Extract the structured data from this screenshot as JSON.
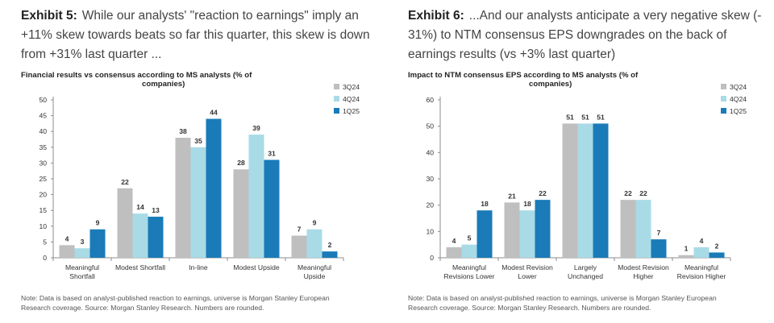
{
  "exhibit5": {
    "label": "Exhibit 5:",
    "heading_lines": [
      "While our analysts' \"reaction to earnings\" imply an",
      "+11% skew towards beats so far this quarter, this skew is down",
      "from +31% last quarter ..."
    ],
    "note_lines": [
      "Note: Data is based on analyst-published reaction to earnings, universe is Morgan Stanley European",
      "Research coverage. Source: Morgan Stanley Research. Numbers are rounded."
    ]
  },
  "exhibit6": {
    "label": "Exhibit 6:",
    "heading_lines": [
      "...And our analysts anticipate a very negative skew (-",
      "31%) to NTM consensus EPS downgrades on the back of",
      "earnings results (vs +3% last quarter)"
    ],
    "note_lines": [
      "Note: Data is based on analyst-published reaction to earnings, universe is Morgan Stanley European",
      "Research coverage. Source: Morgan Stanley Research. Numbers are rounded."
    ]
  },
  "colors": {
    "3Q24": "#bfbfbf",
    "4Q24": "#a8dbe6",
    "1Q25": "#1a7bb8"
  },
  "chart_data": [
    {
      "type": "bar",
      "title_lines": [
        "Financial results vs consensus according to MS analysts (% of",
        "companies)"
      ],
      "categories": [
        [
          "Meaningful",
          "Shortfall"
        ],
        [
          "Modest Shortfall"
        ],
        [
          "In-line"
        ],
        [
          "Modest Upside"
        ],
        [
          "Meaningful",
          "Upside"
        ]
      ],
      "series": [
        {
          "name": "3Q24",
          "values": [
            4,
            22,
            38,
            28,
            7
          ]
        },
        {
          "name": "4Q24",
          "values": [
            3,
            14,
            35,
            39,
            9
          ]
        },
        {
          "name": "1Q25",
          "values": [
            9,
            13,
            44,
            31,
            2
          ]
        }
      ],
      "ylim": [
        0,
        50
      ],
      "yticks": [
        0,
        5,
        10,
        15,
        20,
        25,
        30,
        35,
        40,
        45,
        50
      ],
      "legend": "top-right",
      "grid": false
    },
    {
      "type": "bar",
      "title_lines": [
        "Impact to NTM consensus EPS according to MS analysts (% of",
        "companies)"
      ],
      "categories": [
        [
          "Meaningful",
          "Revisions Lower"
        ],
        [
          "Modest Revision",
          "Lower"
        ],
        [
          "Largely",
          "Unchanged"
        ],
        [
          "Modest Revision",
          "Higher"
        ],
        [
          "Meaningful",
          "Revision Higher"
        ]
      ],
      "series": [
        {
          "name": "3Q24",
          "values": [
            4,
            21,
            51,
            22,
            1
          ]
        },
        {
          "name": "4Q24",
          "values": [
            5,
            18,
            51,
            22,
            4
          ]
        },
        {
          "name": "1Q25",
          "values": [
            18,
            22,
            51,
            7,
            2
          ]
        }
      ],
      "ylim": [
        0,
        60
      ],
      "yticks": [
        0,
        10,
        20,
        30,
        40,
        50,
        60
      ],
      "legend": "top-right",
      "grid": false
    }
  ]
}
